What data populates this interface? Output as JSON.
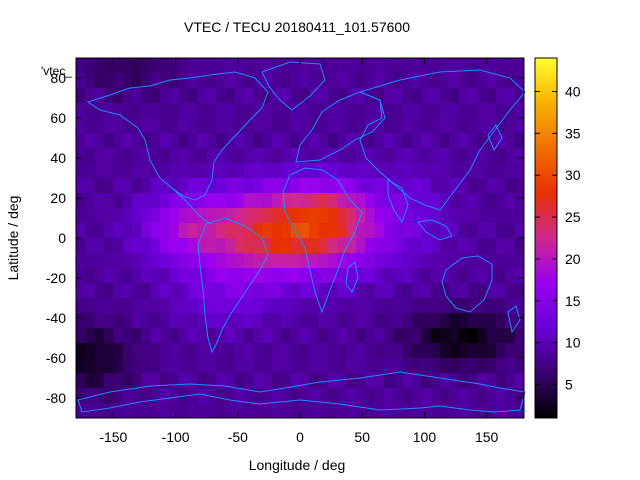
{
  "chart_data": {
    "type": "heatmap",
    "title": "VTEC / TECU 20180411_101.57600",
    "key_label": "'vtec_",
    "xlabel": "Longitude / deg",
    "ylabel": "Latitude / deg",
    "xlim": [
      -180,
      180
    ],
    "ylim": [
      -90,
      90
    ],
    "xticks": [
      -150,
      -100,
      -50,
      0,
      50,
      100,
      150
    ],
    "yticks": [
      -80,
      -60,
      -40,
      -20,
      0,
      20,
      40,
      60,
      80
    ],
    "colorbar": {
      "range": [
        1,
        44
      ],
      "ticks": [
        5,
        10,
        15,
        20,
        25,
        30,
        35,
        40
      ],
      "palette": [
        "#000000",
        "#3a0070",
        "#6a00d8",
        "#9a00f0",
        "#d02890",
        "#e83000",
        "#f07000",
        "#f8b000",
        "#ffff30"
      ]
    },
    "field": {
      "background_tec": 8.5,
      "features": [
        {
          "lon": -10,
          "lat": 3,
          "slon": 52,
          "slat": 15,
          "amp": 20
        },
        {
          "lon": -95,
          "lat": 6,
          "slon": 22,
          "slat": 11,
          "amp": 6
        },
        {
          "lon": 25,
          "lat": 15,
          "slon": 22,
          "slat": 10,
          "amp": 6
        },
        {
          "lon": -60,
          "lat": -28,
          "slon": 28,
          "slat": 12,
          "amp": 4
        },
        {
          "lon": 130,
          "lat": -50,
          "slon": 30,
          "slat": 10,
          "amp": -7
        },
        {
          "lon": -170,
          "lat": -60,
          "slon": 25,
          "slat": 12,
          "amp": -6
        },
        {
          "lon": -140,
          "lat": 85,
          "slon": 30,
          "slat": 10,
          "amp": -3
        },
        {
          "lon": 90,
          "lat": 20,
          "slon": 25,
          "slat": 15,
          "amp": 2
        }
      ]
    },
    "coastline_color": "#1f8cff"
  }
}
